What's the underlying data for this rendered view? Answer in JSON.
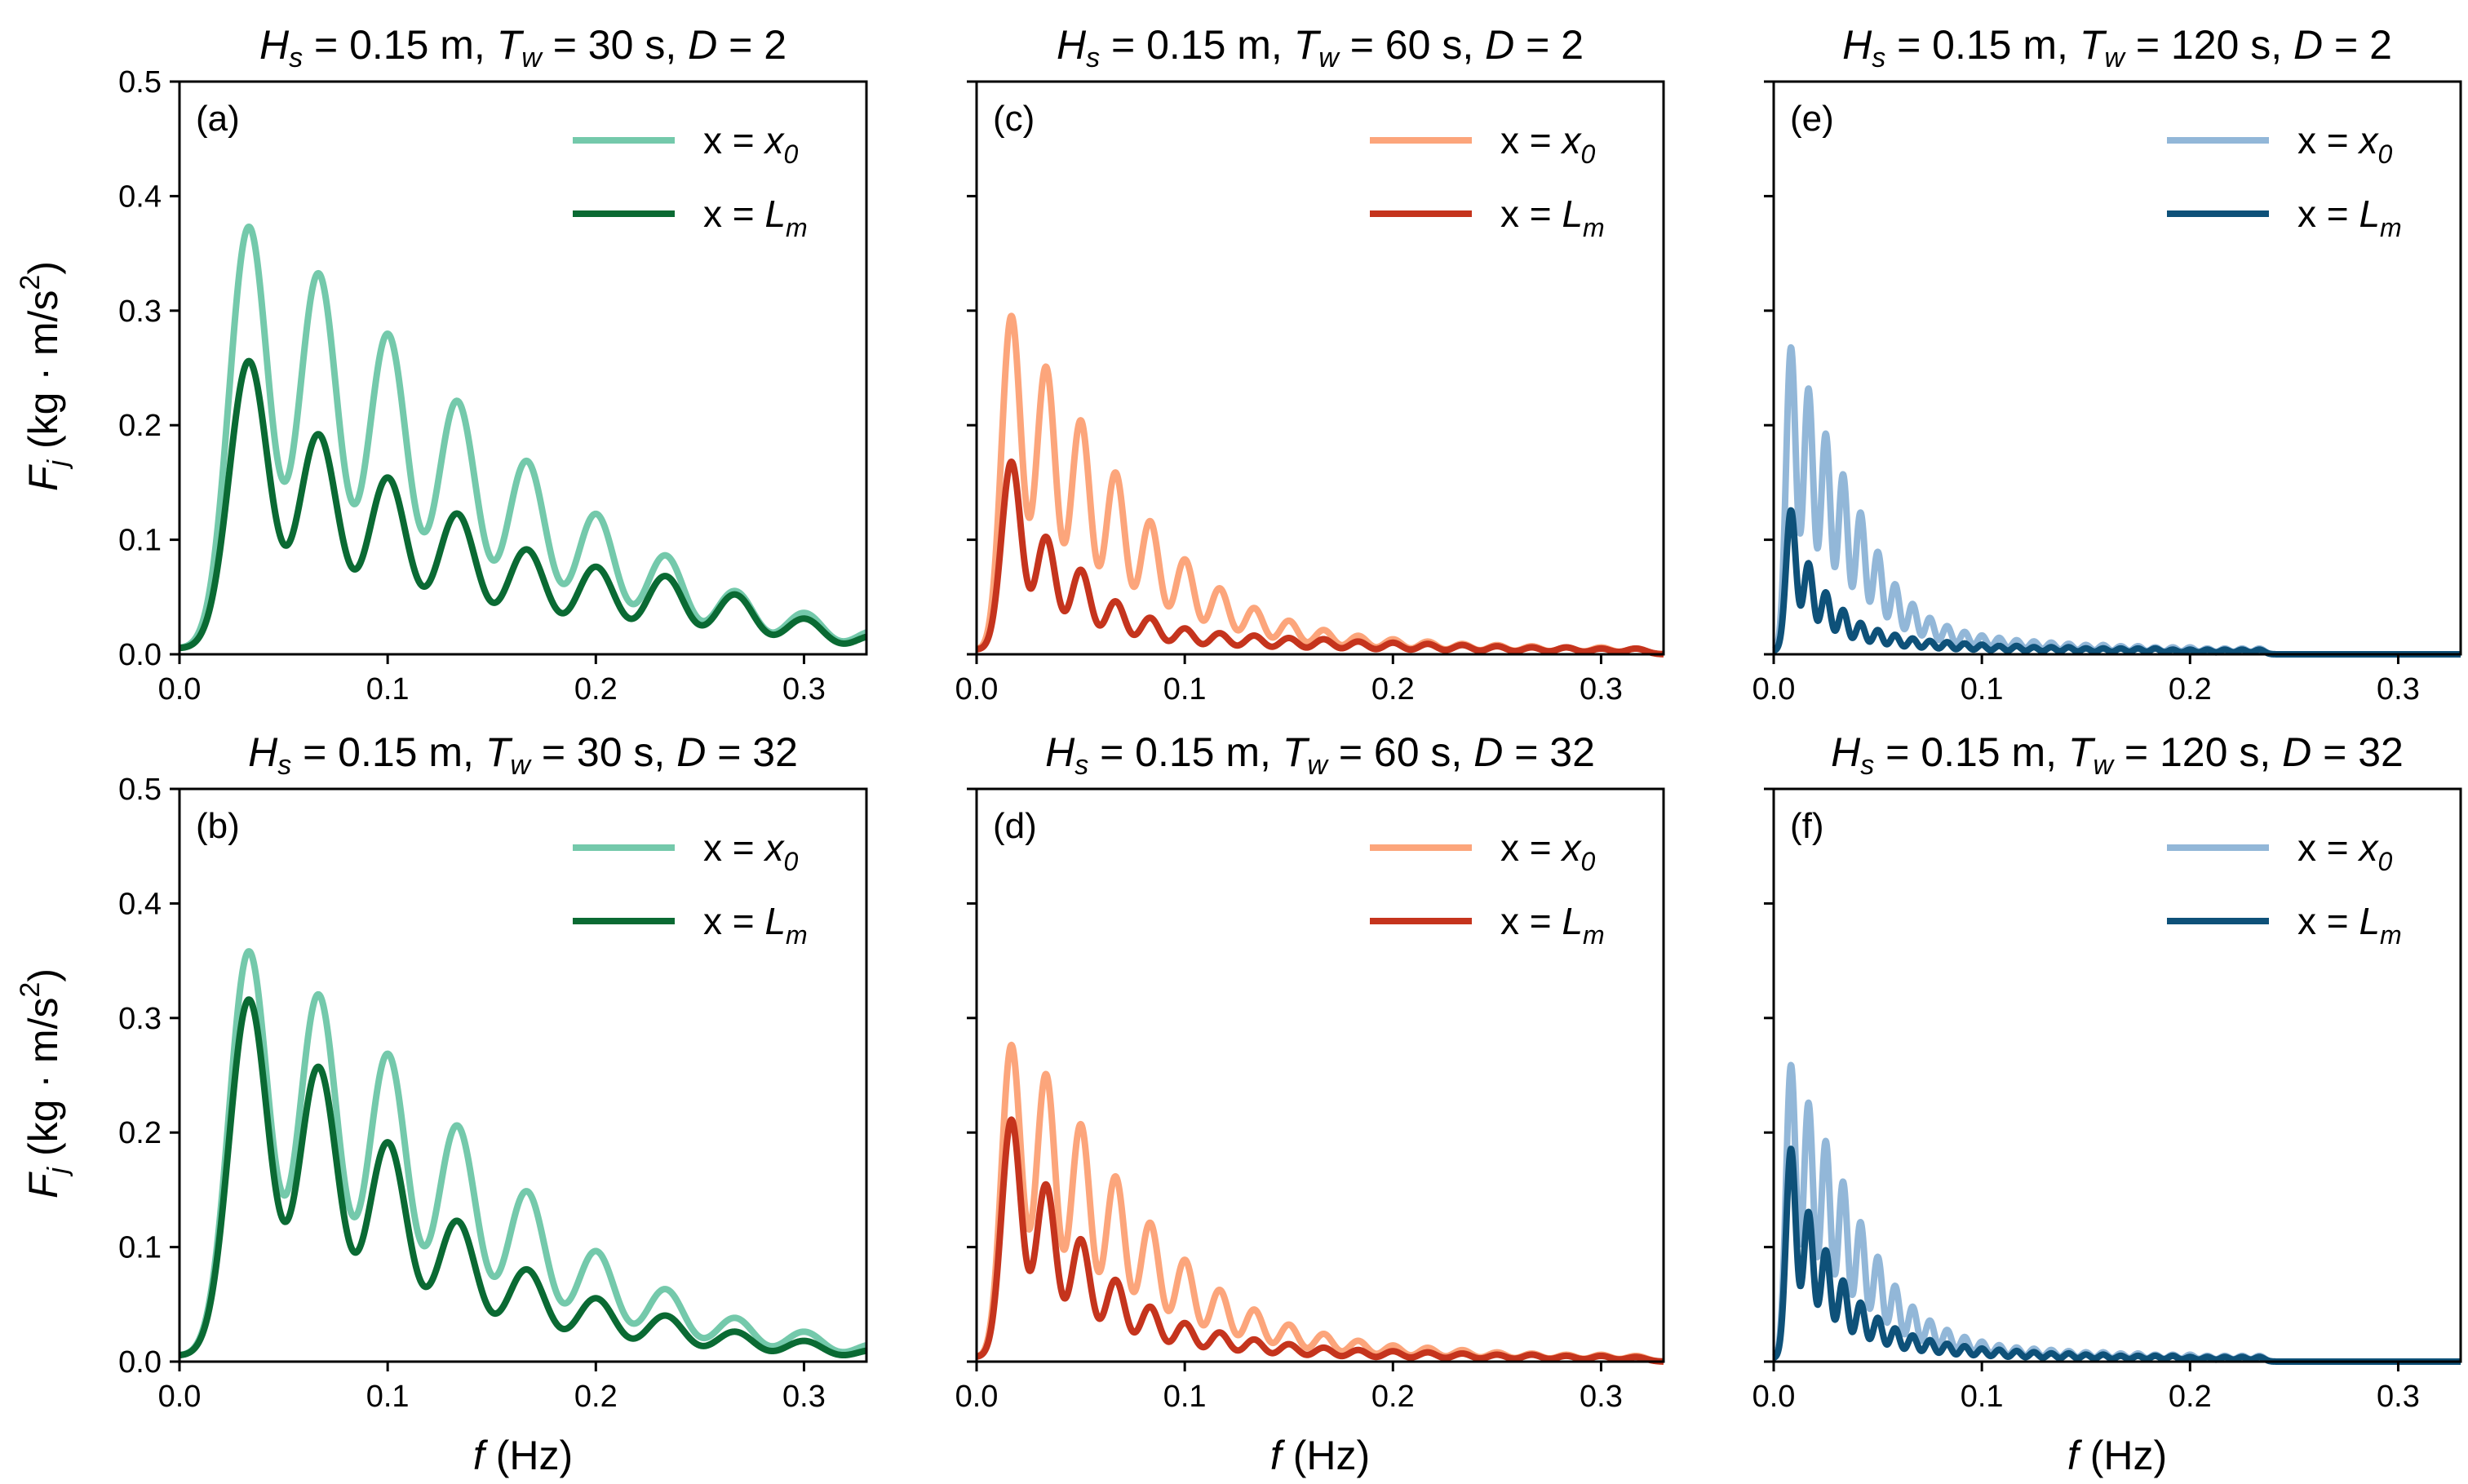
{
  "figure": {
    "ylabel_main": "F",
    "ylabel_sub": "j",
    "ylabel_unit": "(kg · m/s",
    "ylabel_sup": "2",
    "ylabel_close": ")",
    "xlabel_main": "f",
    "xlabel_unit": "(Hz)",
    "legend_x0_prefix": "x = ",
    "legend_x0_var": "x",
    "legend_x0_sub": "0",
    "legend_lm_prefix": "x = ",
    "legend_lm_var": "L",
    "legend_lm_sub": "m"
  },
  "chart_data": [
    {
      "id": "a",
      "panel_label": "(a)",
      "type": "line",
      "title_parts": {
        "H": "H",
        "Hsub": "s",
        "hval": " = 0.15 m, ",
        "T": "T",
        "Tsub": "w",
        "tval": " = 30 s, ",
        "D": "D",
        "dval": " = 2"
      },
      "period_s": 30,
      "xlim": [
        0,
        0.33
      ],
      "ylim": [
        0,
        0.5
      ],
      "xticks": [
        "0.0",
        "0.1",
        "0.2",
        "0.3"
      ],
      "yticks": [
        "0.0",
        "0.1",
        "0.2",
        "0.3",
        "0.4",
        "0.5"
      ],
      "show_yticklabels": true,
      "show_xticklabels": true,
      "show_ylabel": true,
      "show_xlabel": false,
      "colors": {
        "x0": "#74c9ab",
        "lm": "#0a6a33"
      },
      "peaks_freq_hz": [
        0.0333,
        0.0667,
        0.1,
        0.1333,
        0.1667,
        0.2,
        0.2333,
        0.2667,
        0.3,
        0.3333
      ],
      "series": [
        {
          "name": "x = x0",
          "peak_values": [
            0.37,
            0.33,
            0.278,
            0.22,
            0.168,
            0.122,
            0.086,
            0.055,
            0.036,
            0.02
          ]
        },
        {
          "name": "x = Lm",
          "peak_values": [
            0.253,
            0.19,
            0.153,
            0.122,
            0.091,
            0.076,
            0.068,
            0.052,
            0.031,
            0.016
          ]
        }
      ],
      "background_value": 0.005
    },
    {
      "id": "c",
      "panel_label": "(c)",
      "type": "line",
      "title_parts": {
        "H": "H",
        "Hsub": "s",
        "hval": " = 0.15 m, ",
        "T": "T",
        "Tsub": "w",
        "tval": " = 60 s, ",
        "D": "D",
        "dval": " = 2"
      },
      "period_s": 60,
      "xlim": [
        0,
        0.33
      ],
      "ylim": [
        0,
        0.5
      ],
      "xticks": [
        "0.0",
        "0.1",
        "0.2",
        "0.3"
      ],
      "yticks": [
        "0.0",
        "0.1",
        "0.2",
        "0.3",
        "0.4",
        "0.5"
      ],
      "show_yticklabels": false,
      "show_xticklabels": true,
      "show_ylabel": false,
      "show_xlabel": false,
      "colors": {
        "x0": "#fca57b",
        "lm": "#c5341d"
      },
      "peaks_freq_hz": [
        0.0167,
        0.0333,
        0.05,
        0.0667,
        0.0833,
        0.1,
        0.1167,
        0.1333,
        0.15,
        0.1667,
        0.1833,
        0.2,
        0.2167,
        0.2333,
        0.25,
        0.2667,
        0.2833,
        0.3,
        0.3167
      ],
      "series": [
        {
          "name": "x = x0",
          "peak_values": [
            0.292,
            0.248,
            0.202,
            0.157,
            0.115,
            0.082,
            0.057,
            0.04,
            0.029,
            0.021,
            0.016,
            0.013,
            0.011,
            0.009,
            0.008,
            0.007,
            0.006,
            0.006,
            0.005
          ]
        },
        {
          "name": "x = Lm",
          "peak_values": [
            0.165,
            0.1,
            0.072,
            0.045,
            0.031,
            0.022,
            0.018,
            0.016,
            0.014,
            0.013,
            0.011,
            0.01,
            0.009,
            0.008,
            0.007,
            0.006,
            0.006,
            0.005,
            0.005
          ]
        }
      ],
      "background_value": 0.004
    },
    {
      "id": "e",
      "panel_label": "(e)",
      "type": "line",
      "title_parts": {
        "H": "H",
        "Hsub": "s",
        "hval": " = 0.15 m, ",
        "T": "T",
        "Tsub": "w",
        "tval": " = 120 s, ",
        "D": "D",
        "dval": " = 2"
      },
      "period_s": 120,
      "xlim": [
        0,
        0.33
      ],
      "ylim": [
        0,
        0.5
      ],
      "xticks": [
        "0.0",
        "0.1",
        "0.2",
        "0.3"
      ],
      "yticks": [
        "0.0",
        "0.1",
        "0.2",
        "0.3",
        "0.4",
        "0.5"
      ],
      "show_yticklabels": false,
      "show_xticklabels": true,
      "show_ylabel": false,
      "show_xlabel": false,
      "colors": {
        "x0": "#92b7d8",
        "lm": "#0e5179"
      },
      "peaks_freq_hz": [
        0.0083,
        0.0167,
        0.025,
        0.0333,
        0.0417,
        0.05,
        0.0583,
        0.0667,
        0.075,
        0.0833,
        0.0917,
        0.1,
        0.1083,
        0.1167,
        0.125,
        0.1333,
        0.1417,
        0.15,
        0.1583,
        0.1667,
        0.175,
        0.1833,
        0.1917,
        0.2,
        0.2083,
        0.2167,
        0.225,
        0.2333
      ],
      "series": [
        {
          "name": "x = x0",
          "peak_values": [
            0.265,
            0.229,
            0.19,
            0.155,
            0.122,
            0.088,
            0.06,
            0.043,
            0.031,
            0.024,
            0.019,
            0.016,
            0.014,
            0.012,
            0.011,
            0.01,
            0.009,
            0.008,
            0.008,
            0.007,
            0.007,
            0.006,
            0.006,
            0.006,
            0.005,
            0.005,
            0.005,
            0.005
          ]
        },
        {
          "name": "x = Lm",
          "peak_values": [
            0.123,
            0.077,
            0.052,
            0.037,
            0.026,
            0.02,
            0.016,
            0.013,
            0.011,
            0.01,
            0.009,
            0.008,
            0.007,
            0.007,
            0.006,
            0.006,
            0.006,
            0.005,
            0.005,
            0.005,
            0.005,
            0.005,
            0.004,
            0.004,
            0.004,
            0.004,
            0.004,
            0.004
          ]
        }
      ],
      "background_value": 0.003
    },
    {
      "id": "b",
      "panel_label": "(b)",
      "type": "line",
      "title_parts": {
        "H": "H",
        "Hsub": "s",
        "hval": " = 0.15 m, ",
        "T": "T",
        "Tsub": "w",
        "tval": " = 30 s, ",
        "D": "D",
        "dval": " = 32"
      },
      "period_s": 30,
      "xlim": [
        0,
        0.33
      ],
      "ylim": [
        0,
        0.5
      ],
      "xticks": [
        "0.0",
        "0.1",
        "0.2",
        "0.3"
      ],
      "yticks": [
        "0.0",
        "0.1",
        "0.2",
        "0.3",
        "0.4",
        "0.5"
      ],
      "show_yticklabels": true,
      "show_xticklabels": true,
      "show_ylabel": true,
      "show_xlabel": true,
      "colors": {
        "x0": "#74c9ab",
        "lm": "#0a6a33"
      },
      "peaks_freq_hz": [
        0.0333,
        0.0667,
        0.1,
        0.1333,
        0.1667,
        0.2,
        0.2333,
        0.2667,
        0.3,
        0.3333
      ],
      "series": [
        {
          "name": "x = x0",
          "peak_values": [
            0.355,
            0.318,
            0.267,
            0.205,
            0.148,
            0.096,
            0.063,
            0.038,
            0.026,
            0.015
          ]
        },
        {
          "name": "x = Lm",
          "peak_values": [
            0.313,
            0.255,
            0.19,
            0.122,
            0.08,
            0.055,
            0.04,
            0.026,
            0.018,
            0.01
          ]
        }
      ],
      "background_value": 0.005
    },
    {
      "id": "d",
      "panel_label": "(d)",
      "type": "line",
      "title_parts": {
        "H": "H",
        "Hsub": "s",
        "hval": " = 0.15 m, ",
        "T": "T",
        "Tsub": "w",
        "tval": " = 60 s, ",
        "D": "D",
        "dval": " = 32"
      },
      "period_s": 60,
      "xlim": [
        0,
        0.33
      ],
      "ylim": [
        0,
        0.5
      ],
      "xticks": [
        "0.0",
        "0.1",
        "0.2",
        "0.3"
      ],
      "yticks": [
        "0.0",
        "0.1",
        "0.2",
        "0.3",
        "0.4",
        "0.5"
      ],
      "show_yticklabels": false,
      "show_xticklabels": true,
      "show_ylabel": false,
      "show_xlabel": true,
      "colors": {
        "x0": "#fca57b",
        "lm": "#c5341d"
      },
      "peaks_freq_hz": [
        0.0167,
        0.0333,
        0.05,
        0.0667,
        0.0833,
        0.1,
        0.1167,
        0.1333,
        0.15,
        0.1667,
        0.1833,
        0.2,
        0.2167,
        0.2333,
        0.25,
        0.2667,
        0.2833,
        0.3,
        0.3167
      ],
      "series": [
        {
          "name": "x = x0",
          "peak_values": [
            0.273,
            0.248,
            0.205,
            0.16,
            0.12,
            0.088,
            0.062,
            0.045,
            0.032,
            0.024,
            0.018,
            0.014,
            0.012,
            0.01,
            0.008,
            0.007,
            0.006,
            0.006,
            0.005
          ]
        },
        {
          "name": "x = Lm",
          "peak_values": [
            0.208,
            0.152,
            0.105,
            0.07,
            0.047,
            0.033,
            0.025,
            0.019,
            0.015,
            0.012,
            0.01,
            0.009,
            0.008,
            0.007,
            0.006,
            0.006,
            0.005,
            0.005,
            0.004
          ]
        }
      ],
      "background_value": 0.004
    },
    {
      "id": "f",
      "panel_label": "(f)",
      "type": "line",
      "title_parts": {
        "H": "H",
        "Hsub": "s",
        "hval": " = 0.15 m, ",
        "T": "T",
        "Tsub": "w",
        "tval": " = 120 s, ",
        "D": "D",
        "dval": " = 32"
      },
      "period_s": 120,
      "xlim": [
        0,
        0.33
      ],
      "ylim": [
        0,
        0.5
      ],
      "xticks": [
        "0.0",
        "0.1",
        "0.2",
        "0.3"
      ],
      "yticks": [
        "0.0",
        "0.1",
        "0.2",
        "0.3",
        "0.4",
        "0.5"
      ],
      "show_yticklabels": false,
      "show_xticklabels": true,
      "show_ylabel": false,
      "show_xlabel": true,
      "colors": {
        "x0": "#92b7d8",
        "lm": "#0e5179"
      },
      "peaks_freq_hz": [
        0.0083,
        0.0167,
        0.025,
        0.0333,
        0.0417,
        0.05,
        0.0583,
        0.0667,
        0.075,
        0.0833,
        0.0917,
        0.1,
        0.1083,
        0.1167,
        0.125,
        0.1333,
        0.1417,
        0.15,
        0.1583,
        0.1667,
        0.175,
        0.1833,
        0.1917,
        0.2,
        0.2083,
        0.2167,
        0.225,
        0.2333
      ],
      "series": [
        {
          "name": "x = x0",
          "peak_values": [
            0.256,
            0.223,
            0.19,
            0.155,
            0.12,
            0.09,
            0.065,
            0.047,
            0.035,
            0.027,
            0.021,
            0.017,
            0.014,
            0.012,
            0.011,
            0.01,
            0.009,
            0.008,
            0.008,
            0.007,
            0.007,
            0.006,
            0.006,
            0.006,
            0.005,
            0.005,
            0.005,
            0.005
          ]
        },
        {
          "name": "x = Lm",
          "peak_values": [
            0.183,
            0.128,
            0.095,
            0.069,
            0.05,
            0.037,
            0.028,
            0.022,
            0.018,
            0.015,
            0.013,
            0.011,
            0.01,
            0.009,
            0.008,
            0.007,
            0.007,
            0.006,
            0.006,
            0.005,
            0.005,
            0.005,
            0.005,
            0.004,
            0.004,
            0.004,
            0.004,
            0.004
          ]
        }
      ],
      "background_value": 0.003
    }
  ]
}
